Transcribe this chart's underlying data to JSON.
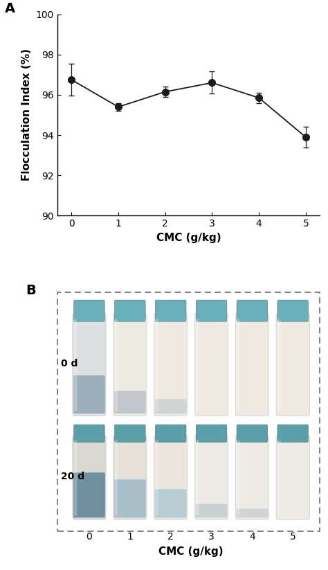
{
  "panel_A_label": "A",
  "panel_B_label": "B",
  "x": [
    0,
    1,
    2,
    3,
    4,
    5
  ],
  "y": [
    96.75,
    95.4,
    96.15,
    96.6,
    95.85,
    93.9
  ],
  "yerr": [
    0.8,
    0.2,
    0.25,
    0.55,
    0.25,
    0.5
  ],
  "xlabel": "CMC (g/kg)",
  "ylabel": "Flocculation Index (%)",
  "xlim": [
    -0.3,
    5.3
  ],
  "ylim": [
    90,
    100
  ],
  "yticks": [
    90,
    92,
    94,
    96,
    98,
    100
  ],
  "xticks": [
    0,
    1,
    2,
    3,
    4,
    5
  ],
  "line_color": "#1a1a1a",
  "marker_color": "#1a1a1a",
  "marker_size": 7,
  "line_width": 1.3,
  "xlabel_fontsize": 11,
  "ylabel_fontsize": 11,
  "tick_fontsize": 10,
  "panel_label_fontsize": 14,
  "b_xlabel": "CMC (g/kg)",
  "b_xtick_labels": [
    "0",
    "1",
    "2",
    "3",
    "4",
    "5"
  ],
  "b_label_0d": "0 d",
  "b_label_20d": "20 d",
  "bg_color": "#ffffff",
  "top_bg": "#1a1a1a",
  "bot_bg": "#2e1f0e",
  "tube_cream": "#f0ede5",
  "tube_gray": "#b8c0c8",
  "tube_blue_gray": "#8fa8b0",
  "tube_light_blue": "#c8d8dc",
  "tube_teal_cap": "#7ab8c0",
  "dash_color": "#777777"
}
